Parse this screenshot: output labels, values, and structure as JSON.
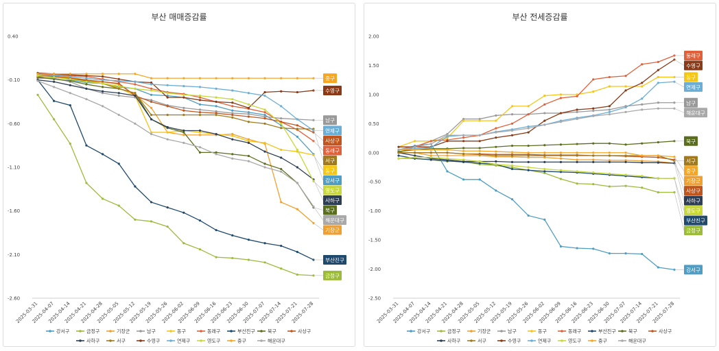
{
  "chart_data": [
    {
      "type": "line",
      "title": "부산 매매증감률",
      "x": [
        "2025-03-31",
        "2025-04-07",
        "2025-04-14",
        "2025-04-21",
        "2025-04-28",
        "2025-05-05",
        "2025-05-12",
        "2025-05-19",
        "2025-05-26",
        "2025-06-02",
        "2025-06-09",
        "2025-06-16",
        "2025-06-23",
        "2025-06-30",
        "2025-07-07",
        "2025-07-14",
        "2025-07-21",
        "2025-07-28"
      ],
      "ylim": [
        -2.6,
        0.4
      ],
      "yticks": [
        "0.40",
        "-0.10",
        "-0.60",
        "-1.10",
        "-1.60",
        "-2.10",
        "-2.60"
      ],
      "ytick_values": [
        0.4,
        -0.1,
        -0.6,
        -1.1,
        -1.6,
        -2.1,
        -2.6
      ],
      "grid": false,
      "legend_position": "bottom",
      "series": [
        {
          "name": "강서구",
          "color": "#4e9dc4",
          "values": [
            -0.07,
            -0.05,
            -0.1,
            -0.13,
            -0.14,
            -0.18,
            -0.2,
            -0.27,
            -0.28,
            -0.3,
            -0.38,
            -0.4,
            -0.45,
            -0.47,
            -0.5,
            -0.62,
            -0.75,
            -0.95
          ],
          "label": "강서구"
        },
        {
          "name": "금정구",
          "color": "#9cbb3b",
          "values": [
            -0.27,
            -0.55,
            -0.83,
            -1.28,
            -1.46,
            -1.54,
            -1.7,
            -1.72,
            -1.78,
            -1.97,
            -2.04,
            -2.13,
            -2.14,
            -2.16,
            -2.19,
            -2.26,
            -2.33,
            -2.34
          ],
          "label": "금정구"
        },
        {
          "name": "기장군",
          "color": "#f0a030",
          "values": [
            -0.06,
            -0.05,
            -0.07,
            -0.1,
            -0.12,
            -0.15,
            -0.27,
            -0.42,
            -0.7,
            -0.73,
            -0.73,
            -0.73,
            -0.72,
            -0.78,
            -0.83,
            -1.5,
            -1.58,
            -1.74
          ],
          "label": "기장군"
        },
        {
          "name": "남구",
          "color": "#999999",
          "values": [
            -0.08,
            -0.08,
            -0.12,
            -0.2,
            -0.25,
            -0.28,
            -0.3,
            -0.33,
            -0.39,
            -0.42,
            -0.44,
            -0.46,
            -0.48,
            -0.49,
            -0.52,
            -0.54,
            -0.55,
            -0.56
          ],
          "label": "남구"
        },
        {
          "name": "동구",
          "color": "#f5c518",
          "values": [
            -0.03,
            -0.05,
            -0.08,
            -0.1,
            -0.14,
            -0.19,
            -0.28,
            -0.7,
            -0.7,
            -0.68,
            -0.7,
            -0.72,
            -0.74,
            -0.8,
            -0.82,
            -0.9,
            -0.92,
            -0.96
          ],
          "label": "동구"
        },
        {
          "name": "동래구",
          "color": "#e0603a",
          "values": [
            -0.03,
            -0.04,
            -0.05,
            -0.06,
            -0.09,
            -0.12,
            -0.15,
            -0.2,
            -0.24,
            -0.26,
            -0.3,
            -0.35,
            -0.4,
            -0.43,
            -0.47,
            -0.58,
            -0.67,
            -0.8
          ],
          "label": "동래구"
        },
        {
          "name": "부산진구",
          "color": "#1f4a6e",
          "values": [
            -0.1,
            -0.34,
            -0.39,
            -0.85,
            -0.95,
            -1.06,
            -1.32,
            -1.5,
            -1.56,
            -1.62,
            -1.71,
            -1.82,
            -1.88,
            -1.93,
            -1.97,
            -2.0,
            -2.07,
            -2.16
          ],
          "label": "부산진구"
        },
        {
          "name": "북구",
          "color": "#5a6e1e",
          "values": [
            -0.07,
            -0.09,
            -0.11,
            -0.15,
            -0.18,
            -0.2,
            -0.25,
            -0.55,
            -0.65,
            -0.7,
            -0.93,
            -0.93,
            -0.95,
            -0.97,
            -1.06,
            -1.12,
            -1.28,
            -1.56
          ],
          "label": "북구"
        },
        {
          "name": "사상구",
          "color": "#c0551e",
          "values": [
            -0.05,
            -0.06,
            -0.08,
            -0.1,
            -0.12,
            -0.14,
            -0.28,
            -0.35,
            -0.4,
            -0.45,
            -0.47,
            -0.48,
            -0.5,
            -0.52,
            -0.54,
            -0.58,
            -0.62,
            -0.7
          ],
          "label": "사상구"
        },
        {
          "name": "사하구",
          "color": "#2e3f55",
          "values": [
            -0.1,
            -0.12,
            -0.16,
            -0.2,
            -0.23,
            -0.25,
            -0.28,
            -0.55,
            -0.64,
            -0.68,
            -0.68,
            -0.72,
            -0.78,
            -0.82,
            -0.92,
            -0.99,
            -1.1,
            -1.24
          ],
          "label": "사하구"
        },
        {
          "name": "서구",
          "color": "#a07a1c",
          "values": [
            -0.06,
            -0.07,
            -0.09,
            -0.11,
            -0.14,
            -0.2,
            -0.25,
            -0.5,
            -0.5,
            -0.5,
            -0.5,
            -0.5,
            -0.53,
            -0.58,
            -0.6,
            -0.65,
            -0.66,
            -0.66
          ],
          "label": "서구"
        },
        {
          "name": "수영구",
          "color": "#8a3a16",
          "values": [
            -0.02,
            -0.03,
            -0.04,
            -0.05,
            -0.06,
            -0.09,
            -0.12,
            -0.13,
            -0.3,
            -0.3,
            -0.33,
            -0.35,
            -0.36,
            -0.42,
            -0.24,
            -0.23,
            -0.24,
            -0.22
          ],
          "label": "수영구"
        },
        {
          "name": "연제구",
          "color": "#6aaed6",
          "values": [
            -0.04,
            -0.05,
            -0.06,
            -0.08,
            -0.1,
            -0.11,
            -0.12,
            -0.15,
            -0.16,
            -0.17,
            -0.18,
            -0.2,
            -0.22,
            -0.25,
            -0.28,
            -0.4,
            -0.55,
            -0.68
          ],
          "label": "연제구"
        },
        {
          "name": "영도구",
          "color": "#c8d838",
          "values": [
            -0.05,
            -0.07,
            -0.09,
            -0.12,
            -0.14,
            -0.17,
            -0.2,
            -0.22,
            -0.25,
            -0.27,
            -0.28,
            -0.3,
            -0.32,
            -0.38,
            -0.44,
            -0.6,
            -0.9,
            -1.26
          ],
          "label": "영도구"
        },
        {
          "name": "중구",
          "color": "#f5a623",
          "values": [
            -0.03,
            -0.03,
            -0.03,
            -0.03,
            -0.03,
            -0.03,
            -0.03,
            -0.08,
            -0.08,
            -0.08,
            -0.08,
            -0.08,
            -0.08,
            -0.08,
            -0.08,
            -0.08,
            -0.08,
            -0.08
          ],
          "label": "중구"
        },
        {
          "name": "해운대구",
          "color": "#a9a9a9",
          "values": [
            -0.11,
            -0.18,
            -0.25,
            -0.32,
            -0.4,
            -0.5,
            -0.6,
            -0.72,
            -0.78,
            -0.82,
            -0.87,
            -0.95,
            -1.0,
            -1.03,
            -1.1,
            -1.15,
            -1.28,
            -1.55
          ],
          "label": "해운대구"
        }
      ]
    },
    {
      "type": "line",
      "title": "부산 전세증감률",
      "x": [
        "2025-03-31",
        "2025-04-07",
        "2025-04-14",
        "2025-04-21",
        "2025-04-28",
        "2025-05-05",
        "2025-05-12",
        "2025-05-19",
        "2025-05-26",
        "2025-06-02",
        "2025-06-09",
        "2025-06-16",
        "2025-06-23",
        "2025-06-30",
        "2025-07-07",
        "2025-07-14",
        "2025-07-21",
        "2025-07-28"
      ],
      "ylim": [
        -2.5,
        2.0
      ],
      "yticks": [
        "2.00",
        "1.50",
        "1.00",
        "0.50",
        "0.00",
        "-0.50",
        "-1.00",
        "-1.50",
        "-2.00",
        "-2.50"
      ],
      "ytick_values": [
        2.0,
        1.5,
        1.0,
        0.5,
        0.0,
        -0.5,
        -1.0,
        -1.5,
        -2.0,
        -2.5
      ],
      "grid": false,
      "legend_position": "bottom",
      "series": [
        {
          "name": "강서구",
          "color": "#4e9dc4",
          "values": [
            0.05,
            0.12,
            0.15,
            -0.32,
            -0.46,
            -0.46,
            -0.65,
            -0.8,
            -1.08,
            -1.15,
            -1.61,
            -1.64,
            -1.65,
            -1.73,
            -1.73,
            -1.74,
            -1.97,
            -2.01
          ],
          "label": "강서구"
        },
        {
          "name": "금정구",
          "color": "#9cbb3b",
          "values": [
            -0.1,
            -0.1,
            -0.12,
            -0.15,
            -0.15,
            -0.2,
            -0.22,
            -0.25,
            -0.3,
            -0.35,
            -0.45,
            -0.53,
            -0.54,
            -0.58,
            -0.57,
            -0.6,
            -0.68,
            -0.68
          ],
          "label": "금정구"
        },
        {
          "name": "기장군",
          "color": "#f0a030",
          "values": [
            0.0,
            0.0,
            -0.05,
            -0.05,
            -0.05,
            -0.05,
            -0.07,
            -0.07,
            -0.08,
            -0.08,
            -0.1,
            -0.12,
            -0.12,
            -0.13,
            -0.13,
            -0.14,
            -0.15,
            -0.18
          ],
          "label": "기장군"
        },
        {
          "name": "남구",
          "color": "#999999",
          "values": [
            0.0,
            0.1,
            0.2,
            0.32,
            0.58,
            0.58,
            0.64,
            0.66,
            0.66,
            0.68,
            0.68,
            0.7,
            0.72,
            0.74,
            0.8,
            0.83,
            0.86,
            0.86
          ],
          "label": "남구"
        },
        {
          "name": "동구",
          "color": "#f5c518",
          "values": [
            0.1,
            0.2,
            0.2,
            0.25,
            0.55,
            0.55,
            0.55,
            0.8,
            0.8,
            0.98,
            1.0,
            1.0,
            1.05,
            1.14,
            1.14,
            1.14,
            1.3,
            1.3
          ],
          "label": "동구"
        },
        {
          "name": "동래구",
          "color": "#e0603a",
          "values": [
            0.05,
            0.1,
            0.2,
            0.22,
            0.26,
            0.3,
            0.42,
            0.5,
            0.66,
            0.83,
            0.94,
            0.97,
            1.26,
            1.3,
            1.32,
            1.52,
            1.56,
            1.67
          ],
          "label": "동래구"
        },
        {
          "name": "부산진구",
          "color": "#1f4a6e",
          "values": [
            -0.05,
            -0.1,
            -0.12,
            -0.14,
            -0.16,
            -0.18,
            -0.2,
            -0.28,
            -0.3,
            -0.32,
            -0.33,
            -0.34,
            -0.36,
            -0.38,
            -0.4,
            -0.42,
            -0.44,
            -0.44
          ],
          "label": "부산진구"
        },
        {
          "name": "북구",
          "color": "#5a6e1e",
          "values": [
            0.02,
            0.05,
            0.07,
            0.07,
            0.08,
            0.08,
            0.1,
            0.12,
            0.12,
            0.13,
            0.14,
            0.15,
            0.16,
            0.16,
            0.14,
            0.16,
            0.18,
            0.2
          ],
          "label": "북구"
        },
        {
          "name": "사상구",
          "color": "#c0551e",
          "values": [
            0.0,
            0.0,
            0.0,
            0.0,
            -0.02,
            -0.02,
            -0.03,
            -0.03,
            -0.03,
            -0.04,
            -0.04,
            -0.04,
            -0.05,
            -0.05,
            -0.06,
            -0.07,
            -0.08,
            -0.12
          ],
          "label": "사상구"
        },
        {
          "name": "사하구",
          "color": "#2e3f55",
          "values": [
            0.0,
            -0.05,
            -0.1,
            -0.12,
            -0.15,
            -0.15,
            -0.15,
            -0.16,
            -0.16,
            -0.16,
            -0.16,
            -0.16,
            -0.16,
            -0.16,
            -0.16,
            -0.17,
            -0.17,
            -0.18
          ],
          "label": "사하구"
        },
        {
          "name": "서구",
          "color": "#a07a1c",
          "values": [
            0.0,
            0.0,
            0.0,
            0.0,
            -0.02,
            -0.03,
            -0.05,
            -0.05,
            -0.05,
            -0.05,
            -0.05,
            -0.05,
            -0.05,
            -0.05,
            -0.05,
            -0.05,
            -0.05,
            -0.14
          ],
          "label": "서구"
        },
        {
          "name": "수영구",
          "color": "#8a3a16",
          "values": [
            0.1,
            0.1,
            0.1,
            0.2,
            0.2,
            0.2,
            0.26,
            0.3,
            0.35,
            0.55,
            0.68,
            0.74,
            0.76,
            0.8,
            1.07,
            1.2,
            1.42,
            1.6
          ],
          "label": "수영구"
        },
        {
          "name": "연제구",
          "color": "#6aaed6",
          "values": [
            0.05,
            0.07,
            0.09,
            0.28,
            0.3,
            0.3,
            0.36,
            0.4,
            0.45,
            0.48,
            0.55,
            0.6,
            0.64,
            0.7,
            0.78,
            0.93,
            1.2,
            1.22
          ],
          "label": "연제구"
        },
        {
          "name": "영도구",
          "color": "#c8d838",
          "values": [
            -0.1,
            -0.08,
            -0.08,
            -0.1,
            -0.12,
            -0.15,
            -0.2,
            -0.22,
            -0.25,
            -0.28,
            -0.3,
            -0.32,
            -0.34,
            -0.36,
            -0.38,
            -0.4,
            -0.44,
            -0.44
          ],
          "label": "영도구"
        },
        {
          "name": "중구",
          "color": "#f5a623",
          "values": [
            0.05,
            0.05,
            0.05,
            0.05,
            0.03,
            0.03,
            0.02,
            0.01,
            0.0,
            0.0,
            0.0,
            0.0,
            0.0,
            0.0,
            0.0,
            -0.05,
            -0.05,
            -0.07
          ],
          "label": "중구"
        },
        {
          "name": "해운대구",
          "color": "#a9a9a9",
          "values": [
            0.05,
            0.1,
            0.15,
            0.3,
            0.3,
            0.3,
            0.35,
            0.38,
            0.42,
            0.48,
            0.53,
            0.58,
            0.63,
            0.66,
            0.7,
            0.74,
            0.76,
            0.76
          ],
          "label": "해운대구"
        }
      ]
    }
  ]
}
